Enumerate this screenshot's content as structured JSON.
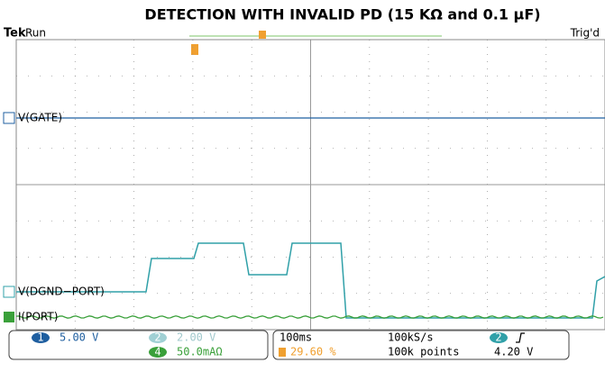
{
  "title": "DETECTION WITH INVALID PD (15 KΩ and 0.1 µF)",
  "header": {
    "brand": "Tek",
    "state": "Run",
    "trigger_state": "Trig'd"
  },
  "traces": [
    {
      "label": "V(GATE)",
      "channel": "1"
    },
    {
      "label": "V(DGND−PORT)",
      "channel": "2"
    },
    {
      "label": "I(PORT)",
      "channel": "4"
    }
  ],
  "status": {
    "ch1": {
      "number": "1",
      "scale": "5.00 V"
    },
    "ch2": {
      "number": "2",
      "scale": "2.00 V"
    },
    "ch4": {
      "number": "4",
      "scale": "50.0mAΩ"
    },
    "timebase": "100ms",
    "trigger_position": "29.60 %",
    "sample_rate": "100kS/s",
    "record_length": "100k points",
    "trigger_source": "2",
    "trigger_level": "4.20 V"
  }
}
